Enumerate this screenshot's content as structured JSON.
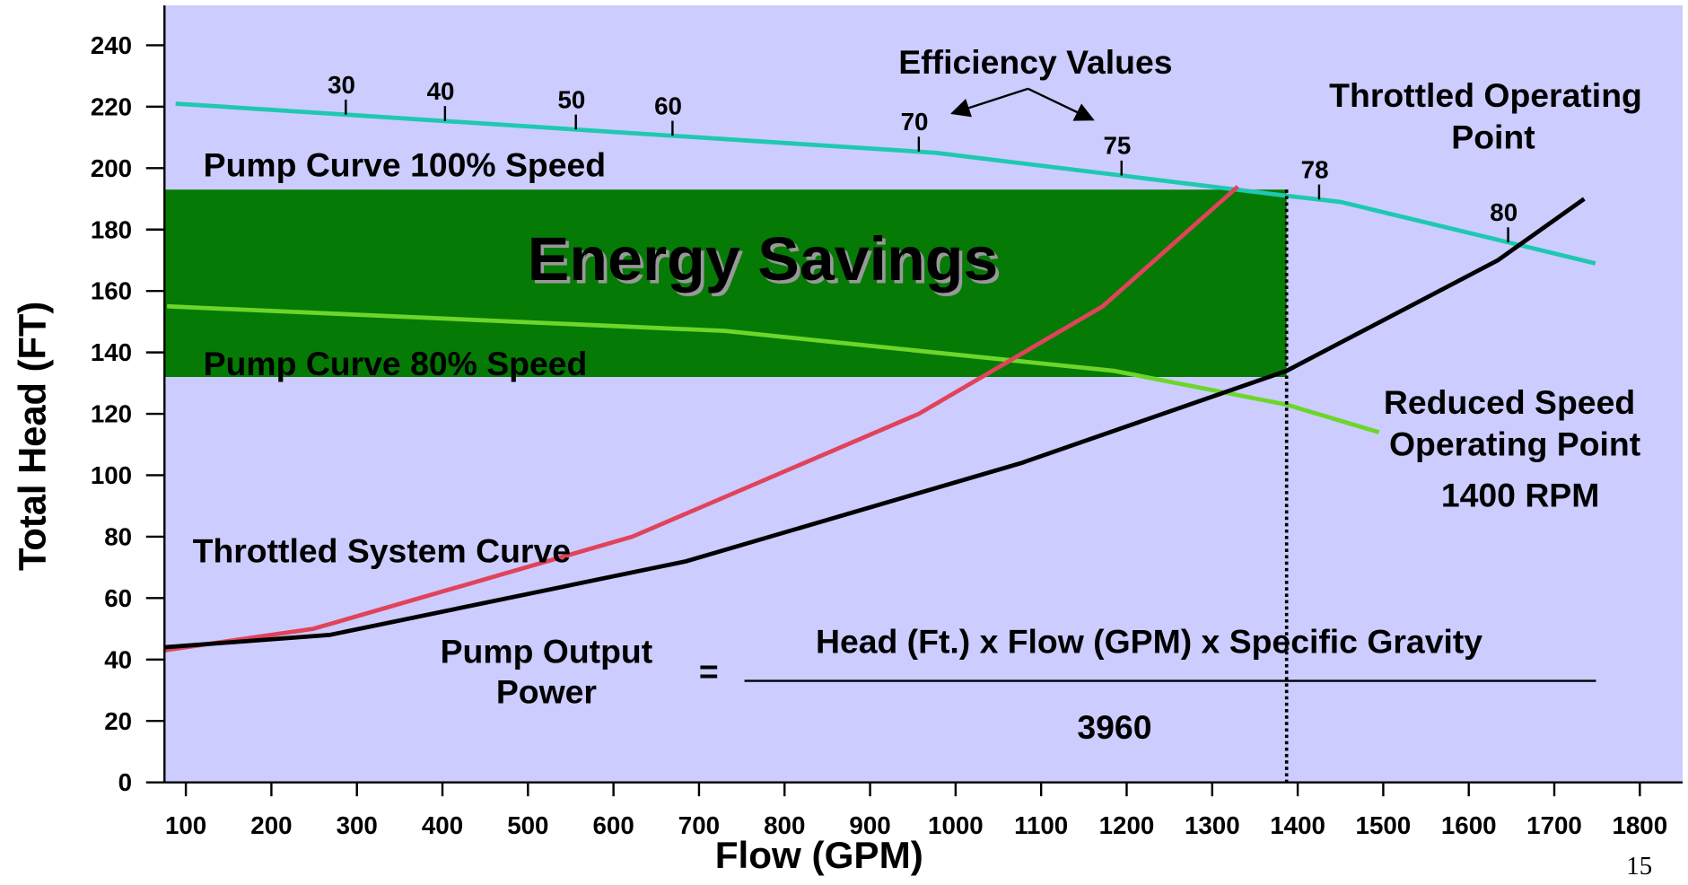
{
  "chart_data": {
    "type": "line",
    "xlabel": "Flow (GPM)",
    "ylabel": "Total Head (FT)",
    "xlim": [
      75,
      1850
    ],
    "ylim": [
      0,
      253
    ],
    "xticks": [
      100,
      200,
      300,
      400,
      500,
      600,
      700,
      800,
      900,
      1000,
      1100,
      1200,
      1300,
      1400,
      1500,
      1600,
      1700,
      1800
    ],
    "yticks": [
      0,
      20,
      40,
      60,
      80,
      100,
      120,
      140,
      160,
      180,
      200,
      220,
      240
    ],
    "background": "#ccccff",
    "series": [
      {
        "name": "Pump Curve 100% Speed",
        "color": "#1fc8b0",
        "x": [
          88,
          977,
          1387,
          1450,
          1748
        ],
        "values": [
          221,
          205,
          191,
          189,
          169
        ]
      },
      {
        "name": "Pump Curve 80% Speed",
        "color": "#6dd62a",
        "x": [
          78,
          730,
          1185,
          1387,
          1495
        ],
        "values": [
          155,
          147,
          134,
          123,
          114
        ]
      },
      {
        "name": "Throttled System Curve",
        "color": "#e0435a",
        "x": [
          75,
          249,
          622,
          957,
          1172,
          1330
        ],
        "values": [
          43,
          50,
          80,
          120,
          155,
          194
        ]
      },
      {
        "color": "#000000",
        "x": [
          75,
          268,
          685,
          1077,
          1387,
          1634,
          1735
        ],
        "values": [
          44,
          48,
          72,
          104,
          134,
          170,
          190
        ]
      }
    ],
    "band": {
      "label": "Energy Savings",
      "color": "#057a05",
      "x": [
        75,
        1387
      ],
      "y": [
        132,
        193
      ]
    },
    "efficiency": {
      "title": "Efficiency Values",
      "labels": [
        30,
        40,
        50,
        60,
        70,
        75,
        78,
        80
      ],
      "x": [
        287,
        403,
        556,
        669,
        957,
        1194,
        1425,
        1646
      ]
    },
    "annotations": {
      "throttled_point": [
        "Throttled Operating",
        "Point"
      ],
      "reduced_point": [
        "Reduced Speed",
        "Operating Point"
      ],
      "rpm": "1400 RPM",
      "formula_left": [
        "Pump Output",
        "Power"
      ],
      "equals": "=",
      "numerator": "Head (Ft.) x Flow (GPM) x Specific Gravity",
      "denominator": "3960"
    },
    "page_number": "15"
  }
}
